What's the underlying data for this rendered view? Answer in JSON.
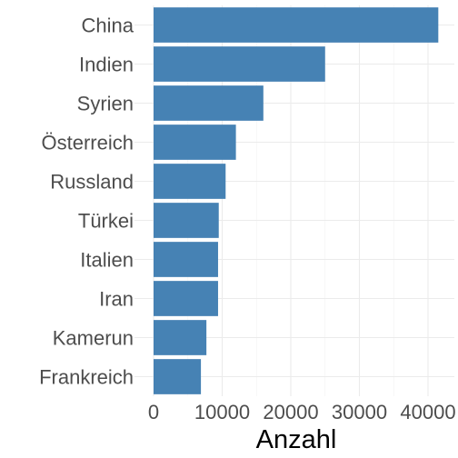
{
  "chart_data": {
    "type": "bar",
    "orientation": "horizontal",
    "categories": [
      "China",
      "Indien",
      "Syrien",
      "Österreich",
      "Russland",
      "Türkei",
      "Italien",
      "Iran",
      "Kamerun",
      "Frankreich"
    ],
    "values": [
      41500,
      25000,
      16000,
      12000,
      10500,
      9500,
      9400,
      9400,
      7700,
      6900
    ],
    "xlabel": "Anzahl",
    "ylabel": "",
    "xlim": [
      0,
      42000
    ],
    "x_ticks": [
      0,
      10000,
      20000,
      30000,
      40000
    ],
    "x_tick_labels": [
      "0",
      "10000",
      "20000",
      "30000",
      "40000"
    ],
    "grid": true,
    "bar_color": "#4682B4"
  }
}
